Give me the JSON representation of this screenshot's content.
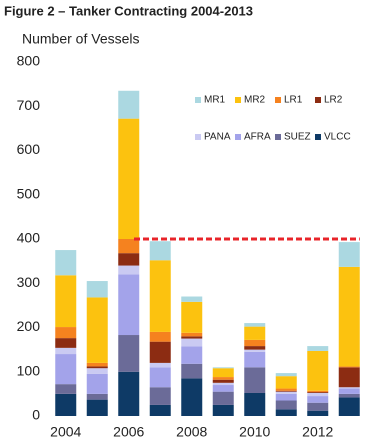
{
  "chart_data": {
    "type": "stacked-bar",
    "title": "Figure 2 – Tanker Contracting 2004-2013",
    "y_label": "Number of Vessels",
    "categories": [
      "2004",
      null,
      "2006",
      null,
      "2008",
      null,
      "2010",
      null,
      "2012",
      null
    ],
    "ylim": [
      0,
      800
    ],
    "yticks": [
      0,
      100,
      200,
      300,
      400,
      500,
      600,
      700,
      800
    ],
    "series": [
      {
        "name": "VLCC",
        "color": "#0e3a66",
        "values": [
          50,
          37,
          100,
          25,
          85,
          25,
          52,
          15,
          12,
          42
        ]
      },
      {
        "name": "SUEZ",
        "color": "#6b6b98",
        "values": [
          22,
          13,
          83,
          40,
          33,
          30,
          58,
          20,
          18,
          8
        ]
      },
      {
        "name": "AFRA",
        "color": "#a3a3ea",
        "values": [
          68,
          45,
          137,
          45,
          39,
          15,
          35,
          15,
          15,
          12
        ]
      },
      {
        "name": "PANA",
        "color": "#cacaf2",
        "values": [
          14,
          13,
          20,
          10,
          18,
          5,
          5,
          5,
          7,
          3
        ]
      },
      {
        "name": "LR2",
        "color": "#8c2c12",
        "values": [
          22,
          4,
          28,
          48,
          5,
          7,
          8,
          2,
          2,
          45
        ]
      },
      {
        "name": "LR1",
        "color": "#f5821f",
        "values": [
          25,
          8,
          32,
          22,
          8,
          6,
          14,
          5,
          3,
          2
        ]
      },
      {
        "name": "MR2",
        "color": "#fcc20f",
        "values": [
          117,
          148,
          272,
          162,
          70,
          20,
          30,
          28,
          90,
          225
        ]
      },
      {
        "name": "MR1",
        "color": "#abd8e1",
        "values": [
          57,
          37,
          63,
          43,
          12,
          2,
          8,
          7,
          11,
          56
        ]
      }
    ],
    "hline": {
      "value": 400,
      "color": "#e8242a"
    }
  }
}
